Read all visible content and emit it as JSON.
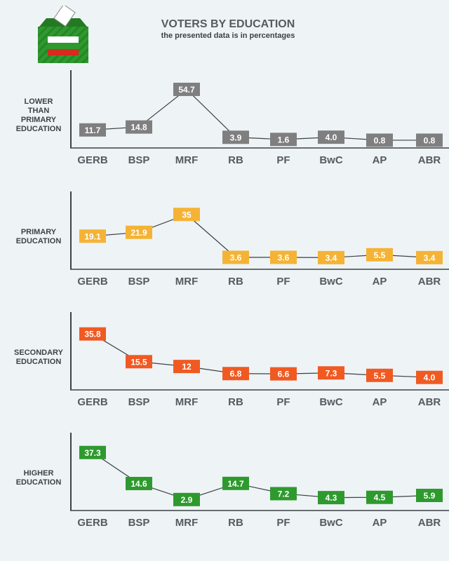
{
  "header": {
    "title": "VOTERS BY EDUCATION",
    "subtitle": "the presented data is in percentages"
  },
  "colors": {
    "axis": "#3d4246",
    "connector": "#3d4246",
    "ballot_green": "#2e9a2e",
    "flag_white": "#ffffff",
    "flag_green": "#2e9a2e",
    "flag_red": "#d62b1e"
  },
  "icons": {
    "ballot": "ballot-box-icon"
  },
  "chart_data": [
    {
      "type": "line",
      "label": "LOWER THAN PRIMARY EDUCATION",
      "label_lines": [
        "LOWER",
        "THAN",
        "PRIMARY",
        "EDUCATION"
      ],
      "color": "#7f7f7f",
      "categories": [
        "GERB",
        "BSP",
        "MRF",
        "RB",
        "PF",
        "BwC",
        "AP",
        "ABR"
      ],
      "values": [
        11.7,
        14.8,
        54.7,
        3.9,
        1.6,
        4.0,
        0.8,
        0.8
      ],
      "value_labels": [
        "11.7",
        "14.8",
        "54.7",
        "3.9",
        "1.6",
        "4.0",
        "0.8",
        "0.8"
      ],
      "ylim": [
        0,
        58
      ],
      "grid": false
    },
    {
      "type": "line",
      "label": "PRIMARY EDUCATION",
      "label_lines": [
        "PRIMARY",
        "EDUCATION"
      ],
      "color": "#f5b335",
      "categories": [
        "GERB",
        "BSP",
        "MRF",
        "RB",
        "PF",
        "BwC",
        "AP",
        "ABR"
      ],
      "values": [
        19.1,
        21.9,
        35,
        3.6,
        3.6,
        3.4,
        5.5,
        3.4
      ],
      "value_labels": [
        "19.1",
        "21.9",
        "35",
        "3.6",
        "3.6",
        "3.4",
        "5.5",
        "3.4"
      ],
      "ylim": [
        0,
        40
      ],
      "grid": false
    },
    {
      "type": "line",
      "label": "SECONDARY EDUCATION",
      "label_lines": [
        "SECONDARY",
        "EDUCATION"
      ],
      "color": "#f05a22",
      "categories": [
        "GERB",
        "BSP",
        "MRF",
        "RB",
        "PF",
        "BwC",
        "AP",
        "ABR"
      ],
      "values": [
        35.8,
        15.5,
        12,
        6.8,
        6.6,
        7.3,
        5.5,
        4.0
      ],
      "value_labels": [
        "35.8",
        "15.5",
        "12",
        "6.8",
        "6.6",
        "7.3",
        "5.5",
        "4.0"
      ],
      "ylim": [
        0,
        40
      ],
      "grid": false
    },
    {
      "type": "line",
      "label": "HIGHER EDUCATION",
      "label_lines": [
        "HIGHER",
        "EDUCATION"
      ],
      "color": "#2e9a2e",
      "categories": [
        "GERB",
        "BSP",
        "MRF",
        "RB",
        "PF",
        "BwC",
        "AP",
        "ABR"
      ],
      "values": [
        37.3,
        14.6,
        2.9,
        14.7,
        7.2,
        4.3,
        4.5,
        5.9
      ],
      "value_labels": [
        "37.3",
        "14.6",
        "2.9",
        "14.7",
        "7.2",
        "4.3",
        "4.5",
        "5.9"
      ],
      "ylim": [
        0,
        40
      ],
      "grid": false
    }
  ]
}
